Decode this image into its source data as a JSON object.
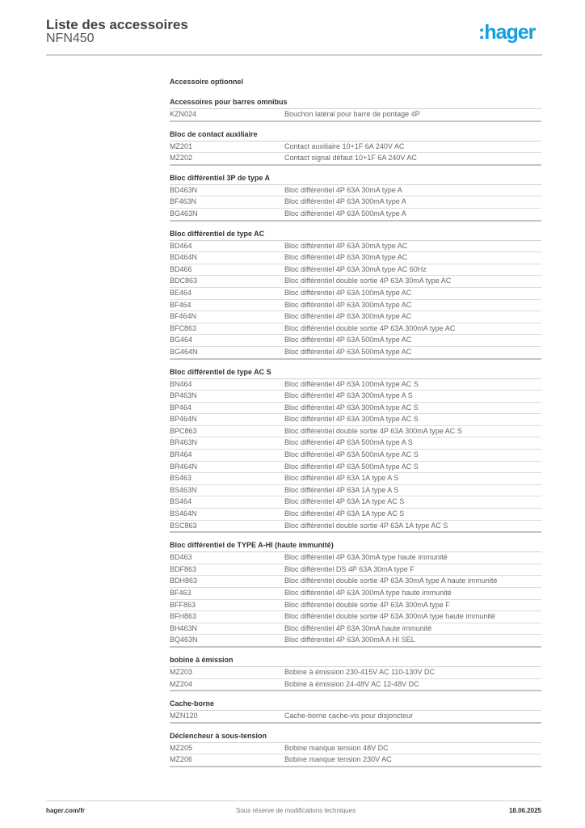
{
  "header": {
    "title": "Liste des accessoires",
    "subtitle": "NFN450",
    "logo": ":hager",
    "logo_color": "#10a0e0"
  },
  "main": {
    "optional_label": "Accessoire optionnel",
    "groups": [
      {
        "title": "Accessoires pour barres omnibus",
        "rows": [
          {
            "ref": "KZN024",
            "desc": "Bouchon latéral pour barre de pontage 4P"
          }
        ]
      },
      {
        "title": "Bloc de contact auxiliaire",
        "rows": [
          {
            "ref": "MZ201",
            "desc": "Contact auxiliaire 10+1F 6A 240V AC"
          },
          {
            "ref": "MZ202",
            "desc": "Contact signal défaut 10+1F 6A 240V AC"
          }
        ]
      },
      {
        "title": "Bloc différentiel 3P de type A",
        "rows": [
          {
            "ref": "BD463N",
            "desc": "Bloc différentiel 4P 63A 30mA type A"
          },
          {
            "ref": "BF463N",
            "desc": "Bloc différentiel 4P 63A 300mA type A"
          },
          {
            "ref": "BG463N",
            "desc": "Bloc différentiel 4P 63A 500mA type A"
          }
        ]
      },
      {
        "title": "Bloc différentiel de type AC",
        "rows": [
          {
            "ref": "BD464",
            "desc": "Bloc différentiel 4P 63A 30mA type AC"
          },
          {
            "ref": "BD464N",
            "desc": "Bloc différentiel 4P 63A 30mA type AC"
          },
          {
            "ref": "BD466",
            "desc": "Bloc différentiel 4P 63A 30mA type AC 60Hz"
          },
          {
            "ref": "BDC863",
            "desc": "Bloc différentiel double sortie 4P 63A 30mA type AC"
          },
          {
            "ref": "BE464",
            "desc": "Bloc différentiel 4P 63A 100mA type AC"
          },
          {
            "ref": "BF464",
            "desc": "Bloc différentiel 4P 63A 300mA type AC"
          },
          {
            "ref": "BF464N",
            "desc": "Bloc différentiel 4P 63A 300mA type AC"
          },
          {
            "ref": "BFC863",
            "desc": "Bloc différentiel double sortie 4P 63A 300mA type AC"
          },
          {
            "ref": "BG464",
            "desc": "Bloc différentiel 4P 63A 500mA type AC"
          },
          {
            "ref": "BG464N",
            "desc": "Bloc différentiel 4P 63A 500mA type AC"
          }
        ]
      },
      {
        "title": "Bloc différentiel de type AC S",
        "rows": [
          {
            "ref": "BN464",
            "desc": "Bloc différentiel 4P 63A 100mA type AC S"
          },
          {
            "ref": "BP463N",
            "desc": "Bloc différentiel 4P 63A 300mA type A S"
          },
          {
            "ref": "BP464",
            "desc": "Bloc différentiel 4P 63A 300mA type AC S"
          },
          {
            "ref": "BP464N",
            "desc": "Bloc différentiel 4P 63A 300mA type AC S"
          },
          {
            "ref": "BPC863",
            "desc": "Bloc différentiel double sortie 4P 63A 300mA type AC S"
          },
          {
            "ref": "BR463N",
            "desc": "Bloc différentiel 4P 63A 500mA type A S"
          },
          {
            "ref": "BR464",
            "desc": "Bloc différentiel 4P 63A 500mA type AC S"
          },
          {
            "ref": "BR464N",
            "desc": "Bloc différentiel 4P 63A 500mA type AC S"
          },
          {
            "ref": "BS463",
            "desc": "Bloc différentiel 4P 63A 1A type A S"
          },
          {
            "ref": "BS463N",
            "desc": "Bloc différentiel 4P 63A 1A type A S"
          },
          {
            "ref": "BS464",
            "desc": "Bloc différentiel 4P 63A 1A type AC S"
          },
          {
            "ref": "BS464N",
            "desc": "Bloc différentiel 4P 63A 1A type AC S"
          },
          {
            "ref": "BSC863",
            "desc": "Bloc différentiel double sortie 4P 63A 1A type AC S"
          }
        ]
      },
      {
        "title": "Bloc différentiel de TYPE A-HI (haute immunité)",
        "rows": [
          {
            "ref": "BD463",
            "desc": "Bloc différentiel 4P 63A 30mA type haute immunité"
          },
          {
            "ref": "BDF863",
            "desc": "Bloc différentiel DS 4P 63A 30mA type F"
          },
          {
            "ref": "BDH863",
            "desc": "Bloc différentiel double sortie 4P 63A 30mA type A haute immunité"
          },
          {
            "ref": "BF463",
            "desc": "Bloc différentiel 4P 63A 300mA type haute immunité"
          },
          {
            "ref": "BFF863",
            "desc": "Bloc différentiel double sortie 4P 63A 300mA type F"
          },
          {
            "ref": "BFH863",
            "desc": "Bloc différentiel double sortie 4P 63A 300mA type haute immunité"
          },
          {
            "ref": "BH463N",
            "desc": "Bloc différentiel 4P 63A 30mA haute immunité"
          },
          {
            "ref": "BQ463N",
            "desc": "Bloc différentiel 4P 63A 300mA A HI SEL"
          }
        ]
      },
      {
        "title": "bobine à émission",
        "rows": [
          {
            "ref": "MZ203",
            "desc": "Bobine à émission 230-415V AC 110-130V DC"
          },
          {
            "ref": "MZ204",
            "desc": "Bobine à émission 24-48V AC 12-48V DC"
          }
        ]
      },
      {
        "title": "Cache-borne",
        "rows": [
          {
            "ref": "MZN120",
            "desc": "Cache-borne cache-vis pour disjoncteur"
          }
        ]
      },
      {
        "title": "Déclencheur à sous-tension",
        "rows": [
          {
            "ref": "MZ205",
            "desc": "Bobine manque tension 48V DC"
          },
          {
            "ref": "MZ206",
            "desc": "Bobine manque tension 230V AC"
          }
        ]
      }
    ]
  },
  "footer": {
    "website": "hager.com/fr",
    "disclaimer": "Sous réserve de modifications techniques",
    "date": "18.06.2025"
  }
}
